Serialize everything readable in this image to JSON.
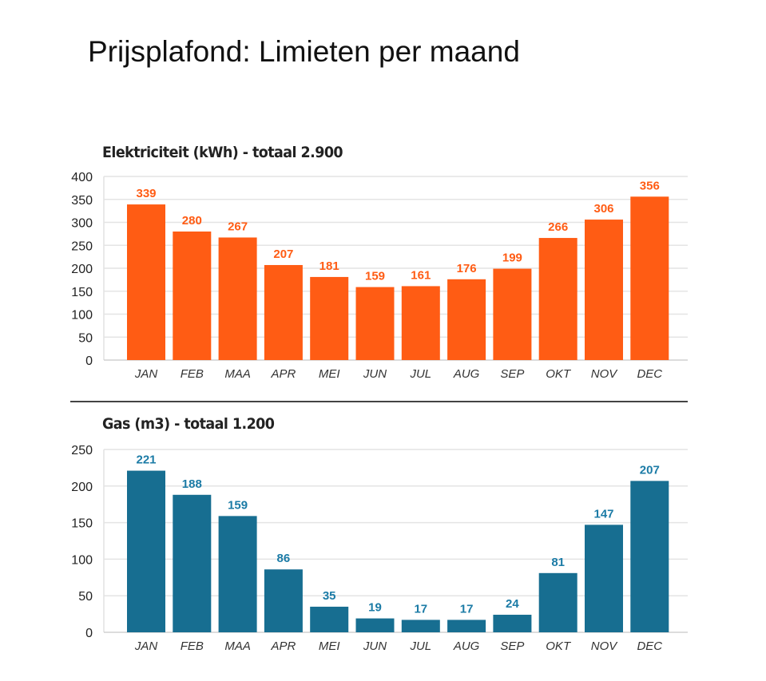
{
  "page_title": "Prijsplafond: Limieten per maand",
  "chart_data": [
    {
      "type": "bar",
      "title": "Elektriciteit (kWh) - totaal 2.900",
      "categories": [
        "JAN",
        "FEB",
        "MAA",
        "APR",
        "MEI",
        "JUN",
        "JUL",
        "AUG",
        "SEP",
        "OKT",
        "NOV",
        "DEC"
      ],
      "values": [
        339,
        280,
        267,
        207,
        181,
        159,
        161,
        176,
        199,
        266,
        306,
        356
      ],
      "ylim": [
        0,
        400
      ],
      "yticks": [
        0,
        50,
        100,
        150,
        200,
        250,
        300,
        350,
        400
      ],
      "grid": true,
      "bar_color": "#FF5C14",
      "label_color": "#FF5C14"
    },
    {
      "type": "bar",
      "title": "Gas (m3) - totaal 1.200",
      "categories": [
        "JAN",
        "FEB",
        "MAA",
        "APR",
        "MEI",
        "JUN",
        "JUL",
        "AUG",
        "SEP",
        "OKT",
        "NOV",
        "DEC"
      ],
      "values": [
        221,
        188,
        159,
        86,
        35,
        19,
        17,
        17,
        24,
        81,
        147,
        207
      ],
      "ylim": [
        0,
        250
      ],
      "yticks": [
        0,
        50,
        100,
        150,
        200,
        250
      ],
      "grid": true,
      "bar_color": "#176E91",
      "label_color": "#1B7BA6"
    }
  ]
}
